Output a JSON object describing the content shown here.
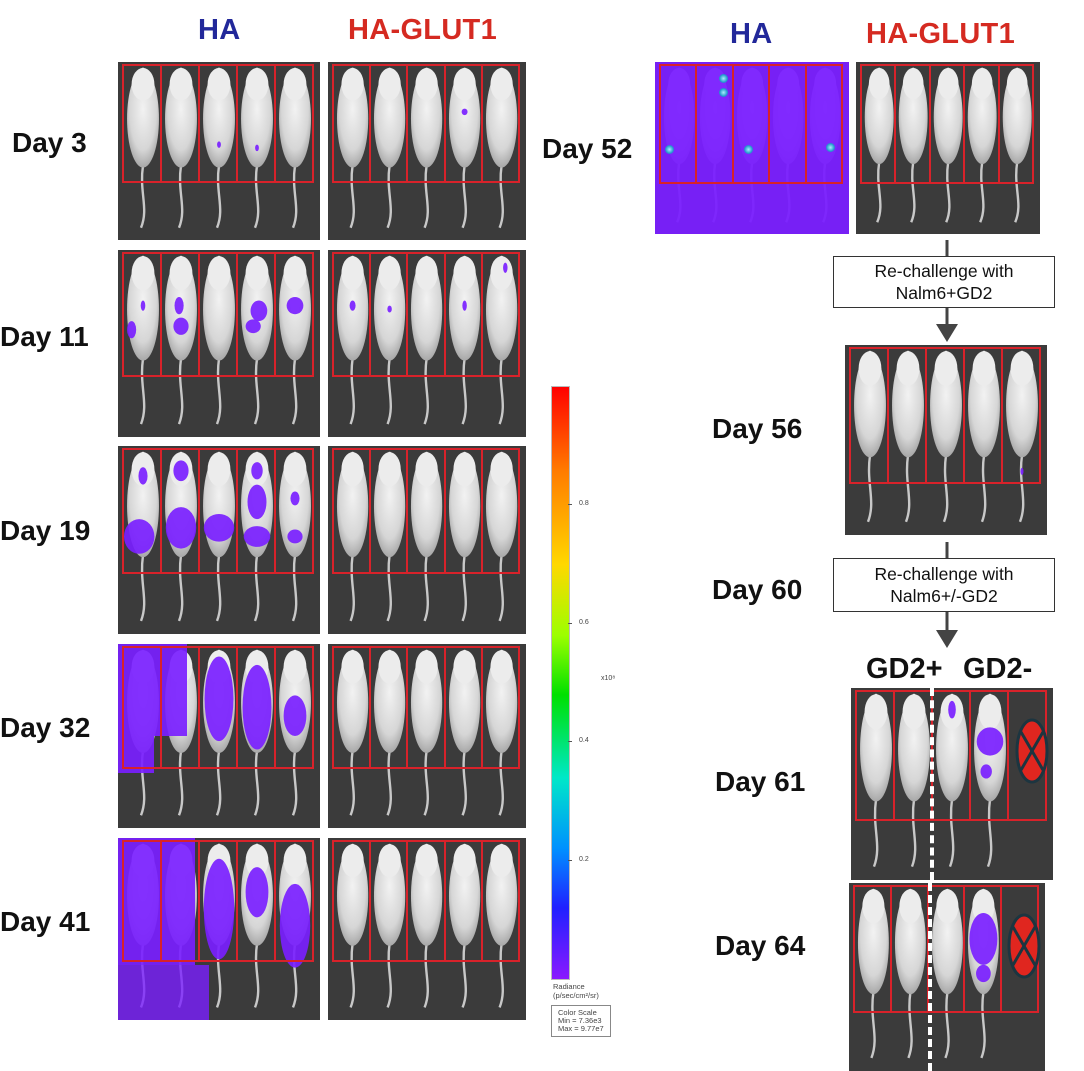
{
  "colors": {
    "ha": "#22289a",
    "glut1": "#d52a21",
    "roi": "#d8222a",
    "signal": "#7a1fff",
    "panel": "#3b3b3b"
  },
  "left": {
    "ha_label": "HA",
    "glut1_label": "HA-GLUT1",
    "days": [
      "Day 3",
      "Day 11",
      "Day 19",
      "Day 32",
      "Day 41"
    ]
  },
  "right": {
    "ha_label": "HA",
    "glut1_label": "HA-GLUT1",
    "day52": "Day 52",
    "rechallenge1": [
      "Re-challenge with",
      "Nalm6+GD2"
    ],
    "day56": "Day 56",
    "day60": "Day 60",
    "rechallenge2": [
      "Re-challenge with",
      "Nalm6+/-GD2"
    ],
    "gd2_pos": "GD2+",
    "gd2_neg": "GD2-",
    "day61": "Day 61",
    "day64": "Day 64"
  },
  "colorbar": {
    "ticks": [
      "0.8",
      "0.6",
      "0.4",
      "0.2"
    ],
    "tick_values": [
      0.8,
      0.6,
      0.4,
      0.2
    ],
    "exponent": "x10⁸",
    "unit_title": "Radiance",
    "unit": "(p/sec/cm²/sr)",
    "scale_title": "Color Scale",
    "min": "Min = 7.36e3",
    "max": "Max = 9.77e7"
  }
}
